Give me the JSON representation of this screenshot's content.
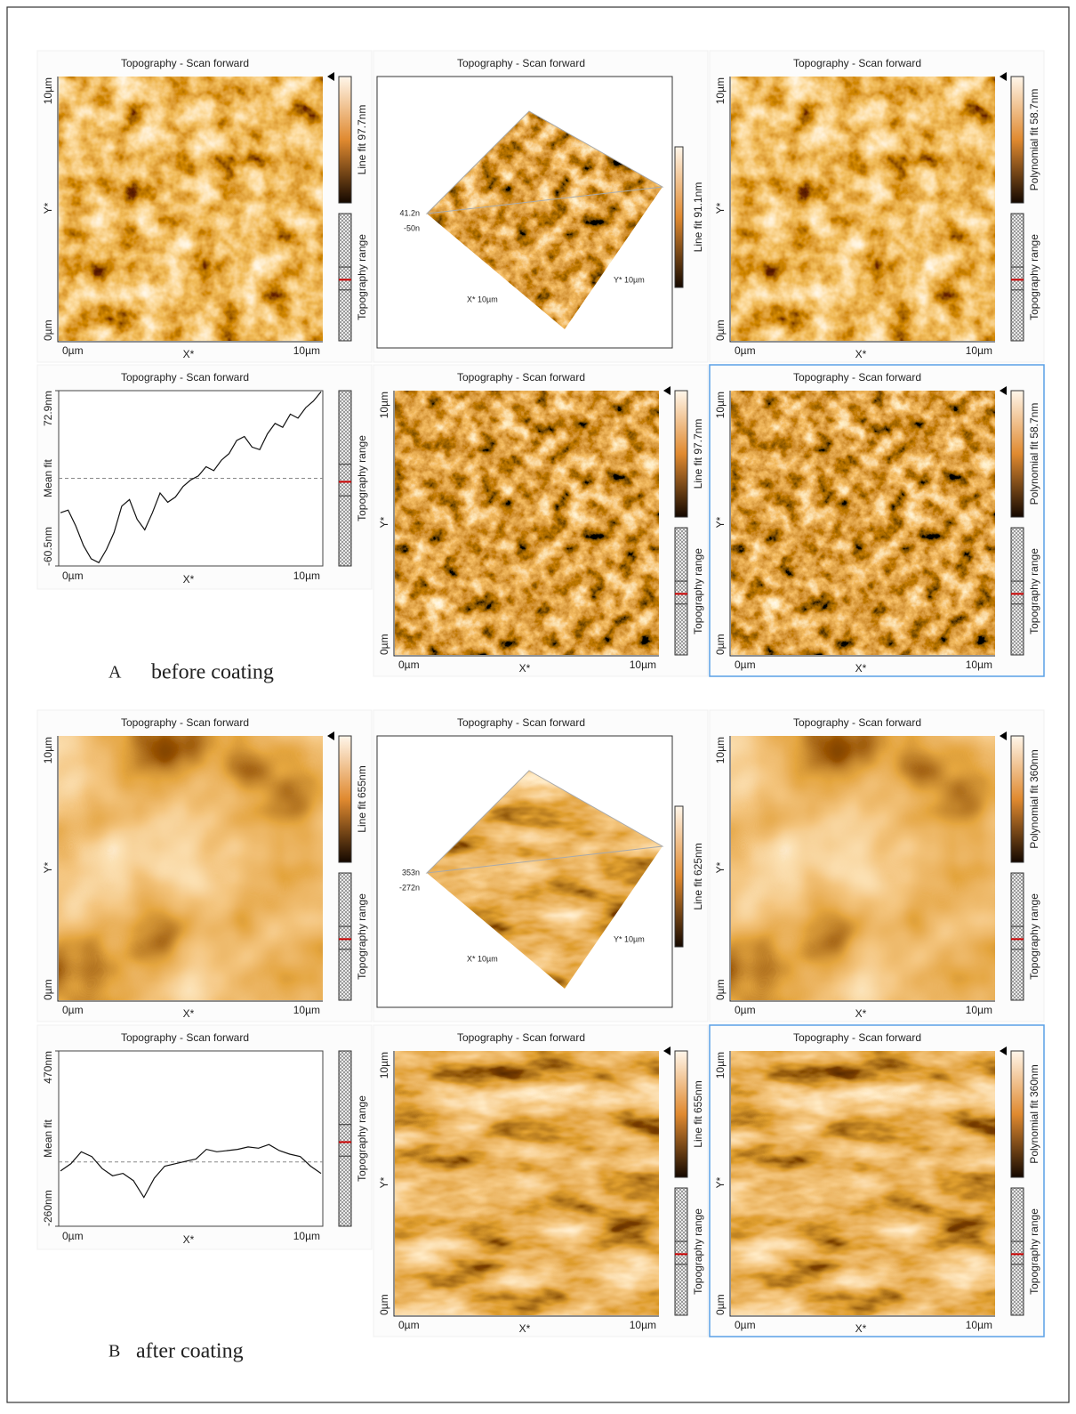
{
  "sections": [
    {
      "letter": "A",
      "caption": "before coating",
      "panels": [
        {
          "kind": "image",
          "title": "Topography - Scan forward",
          "y_axis": [
            "10µm",
            "Y*",
            "0µm"
          ],
          "x_axis": [
            "0µm",
            "X*",
            "10µm"
          ],
          "colorbar_label": "Line fit 97.7nm",
          "range_label": "Topography range",
          "selected": false
        },
        {
          "kind": "3d",
          "title": "Topography - Scan forward",
          "z_labels": [
            "41.2n",
            "-50n"
          ],
          "x_label": "X* 10µm",
          "y_label": "Y* 10µm",
          "colorbar_label": "Line fit 91.1nm",
          "selected": false
        },
        {
          "kind": "image",
          "title": "Topography - Scan forward",
          "y_axis": [
            "10µm",
            "Y*",
            "0µm"
          ],
          "x_axis": [
            "0µm",
            "X*",
            "10µm"
          ],
          "colorbar_label": "Polynomial fit 58.7nm",
          "range_label": "Topography range",
          "selected": false
        },
        {
          "kind": "profile",
          "title": "Topography - Scan forward",
          "y_label": "Mean fit",
          "ylim": [
            -60.5,
            72.9
          ],
          "yticks": [
            {
              "value": -60.5,
              "label": "-60.5nm"
            },
            {
              "value": 72.9,
              "label": "72.9nm"
            }
          ],
          "values": [
            -20,
            -18,
            -30,
            -45,
            -55,
            -58,
            -48,
            -35,
            -15,
            -10,
            -25,
            -33,
            -20,
            -5,
            -12,
            -8,
            0,
            5,
            8,
            15,
            12,
            20,
            25,
            35,
            38,
            30,
            28,
            40,
            48,
            45,
            55,
            52,
            60,
            65,
            72
          ],
          "x_axis": [
            "0µm",
            "X*",
            "10µm"
          ],
          "range_label": "Topography range",
          "selected": false
        },
        {
          "kind": "image",
          "title": "Topography - Scan forward",
          "y_axis": [
            "10µm",
            "Y*",
            "0µm"
          ],
          "x_axis": [
            "0µm",
            "X*",
            "10µm"
          ],
          "colorbar_label": "Line fit 97.7nm",
          "range_label": "Topography range",
          "selected": false
        },
        {
          "kind": "image",
          "title": "Topography - Scan forward",
          "y_axis": [
            "10µm",
            "Y*",
            "0µm"
          ],
          "x_axis": [
            "0µm",
            "X*",
            "10µm"
          ],
          "colorbar_label": "Polynomial fit 58.7nm",
          "range_label": "Topography range",
          "selected": true
        }
      ]
    },
    {
      "letter": "B",
      "caption": "after coating",
      "panels": [
        {
          "kind": "image",
          "title": "Topography - Scan forward",
          "y_axis": [
            "10µm",
            "Y*",
            "0µm"
          ],
          "x_axis": [
            "0µm",
            "X*",
            "10µm"
          ],
          "colorbar_label": "Line fit 655nm",
          "range_label": "Topography range",
          "selected": false
        },
        {
          "kind": "3d",
          "title": "Topography - Scan forward",
          "z_labels": [
            "353n",
            "-272n"
          ],
          "x_label": "X* 10µm",
          "y_label": "Y* 10µm",
          "colorbar_label": "Line fit 625nm",
          "selected": false
        },
        {
          "kind": "image",
          "title": "Topography - Scan forward",
          "y_axis": [
            "10µm",
            "Y*",
            "0µm"
          ],
          "x_axis": [
            "0µm",
            "X*",
            "10µm"
          ],
          "colorbar_label": "Polynomial fit 360nm",
          "range_label": "Topography range",
          "selected": false
        },
        {
          "kind": "profile",
          "title": "Topography - Scan forward",
          "y_label": "Mean fit",
          "ylim": [
            -260,
            470
          ],
          "yticks": [
            {
              "value": -260,
              "label": "-260nm"
            },
            {
              "value": 470,
              "label": "470nm"
            }
          ],
          "values": [
            -30,
            0,
            50,
            30,
            -20,
            -50,
            -40,
            -70,
            -140,
            -60,
            -10,
            0,
            10,
            20,
            60,
            50,
            55,
            60,
            70,
            65,
            80,
            55,
            40,
            30,
            -10,
            -40
          ],
          "x_axis": [
            "0µm",
            "X*",
            "10µm"
          ],
          "range_label": "Topography range",
          "selected": false
        },
        {
          "kind": "image",
          "title": "Topography - Scan forward",
          "y_axis": [
            "10µm",
            "Y*",
            "0µm"
          ],
          "x_axis": [
            "0µm",
            "X*",
            "10µm"
          ],
          "colorbar_label": "Line fit 655nm",
          "range_label": "Topography range",
          "selected": false
        },
        {
          "kind": "image",
          "title": "Topography - Scan forward",
          "y_axis": [
            "10µm",
            "Y*",
            "0µm"
          ],
          "x_axis": [
            "0µm",
            "X*",
            "10µm"
          ],
          "colorbar_label": "Polynomial fit 360nm",
          "range_label": "Topography range",
          "selected": true
        }
      ]
    }
  ]
}
